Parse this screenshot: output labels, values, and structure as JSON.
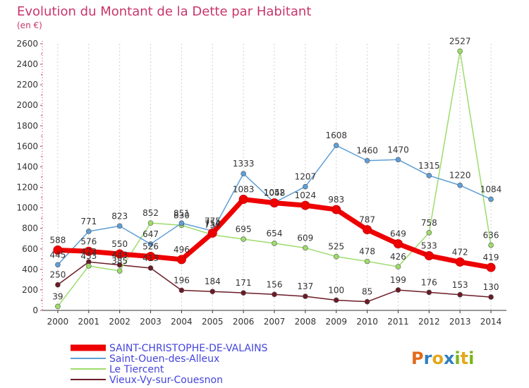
{
  "title": "Evolution du Montant de la Dette par Habitant",
  "subtitle": "(en €)",
  "logo": {
    "text": "Proxiti",
    "colors": [
      "#e36b1a",
      "#2f7fc0",
      "#e3a81a",
      "#2f7fc0",
      "#7ab51d",
      "#e3a81a",
      "#7ab51d"
    ]
  },
  "chart_data": {
    "type": "line",
    "x": [
      "2000",
      "2001",
      "2002",
      "2003",
      "2004",
      "2005",
      "2006",
      "2007",
      "2008",
      "2009",
      "2010",
      "2011",
      "2012",
      "2013",
      "2014"
    ],
    "ylim": [
      0,
      2600
    ],
    "yticks": [
      0,
      200,
      400,
      600,
      800,
      1000,
      1200,
      1400,
      1600,
      1800,
      2000,
      2200,
      2400,
      2600
    ],
    "grid": "vertical",
    "legend": "bottom-left",
    "series": [
      {
        "name": "Vieux-Vy-sur-Couesnon",
        "color": "#6b1b26",
        "width": 1.5,
        "values": [
          250,
          473,
          443,
          413,
          196,
          184,
          171,
          156,
          137,
          100,
          85,
          199,
          176,
          153,
          130
        ],
        "labels": [
          "250",
          "473",
          "443",
          "413",
          "196",
          "184",
          "171",
          "156",
          "137",
          "100",
          "85",
          "199",
          "176",
          "153",
          "130"
        ]
      },
      {
        "name": "Le Tiercent",
        "color": "#9ddc6b",
        "width": 1.5,
        "values": [
          39,
          433,
          385,
          852,
          830,
          737,
          695,
          654,
          609,
          525,
          478,
          426,
          758,
          2527,
          636
        ],
        "labels": [
          "39",
          "433",
          "385",
          "852",
          "830",
          "737",
          "695",
          "654",
          "609",
          "525",
          "478",
          "426",
          "758",
          "2527",
          "636"
        ]
      },
      {
        "name": "Saint-Ouen-des-Alleux",
        "color": "#5f9ed6",
        "width": 1.5,
        "values": [
          445,
          771,
          823,
          647,
          851,
          775,
          1333,
          1052,
          1207,
          1608,
          1460,
          1470,
          1315,
          1220,
          1084
        ],
        "labels": [
          "445",
          "771",
          "823",
          "647",
          "851",
          "775",
          "1333",
          "1052",
          "1207",
          "1608",
          "1460",
          "1470",
          "1315",
          "1220",
          "1084"
        ]
      },
      {
        "name": "SAINT-CHRISTOPHE-DE-VALAINS",
        "color": "#ee0000",
        "width": 7,
        "values": [
          588,
          576,
          550,
          526,
          496,
          754,
          1083,
          1048,
          1024,
          983,
          787,
          649,
          533,
          472,
          419
        ],
        "labels": [
          "588",
          "576",
          "550",
          "526",
          "496",
          "754",
          "1083",
          "1048",
          "1024",
          "983",
          "787",
          "649",
          "533",
          "472",
          "419"
        ]
      }
    ]
  }
}
